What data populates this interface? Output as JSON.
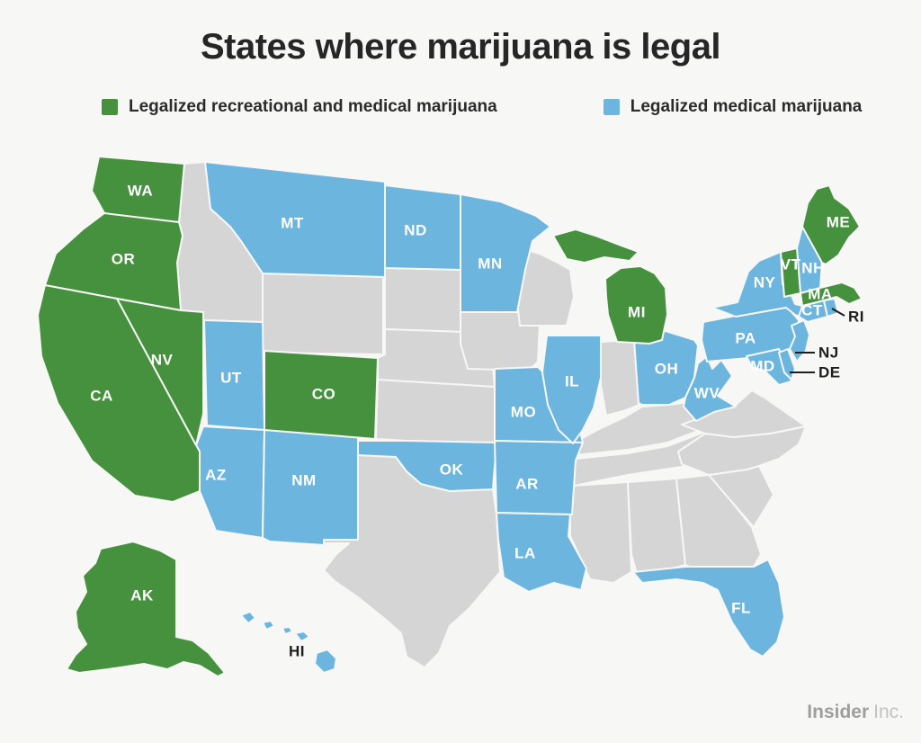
{
  "title": "States where marijuana is legal",
  "legend": [
    {
      "label": "Legalized recreational and medical marijuana",
      "status": "recreational_and_medical"
    },
    {
      "label": "Legalized medical marijuana",
      "status": "medical"
    }
  ],
  "footer": {
    "brand": "Insider",
    "suffix": "Inc."
  },
  "map": {
    "status_colors": {
      "recreational_and_medical": "#45913E",
      "medical": "#6CB5DE",
      "not_legal": "#D5D5D5"
    },
    "callout_states": [
      "RI",
      "NJ",
      "DE"
    ],
    "states": [
      {
        "id": "ID",
        "status": "not_legal",
        "label": ""
      },
      {
        "id": "WY",
        "status": "not_legal",
        "label": ""
      },
      {
        "id": "SD",
        "status": "not_legal",
        "label": ""
      },
      {
        "id": "NE",
        "status": "not_legal",
        "label": ""
      },
      {
        "id": "KS",
        "status": "not_legal",
        "label": ""
      },
      {
        "id": "TX",
        "status": "not_legal",
        "label": ""
      },
      {
        "id": "IA",
        "status": "not_legal",
        "label": ""
      },
      {
        "id": "WI",
        "status": "not_legal",
        "label": ""
      },
      {
        "id": "IN",
        "status": "not_legal",
        "label": ""
      },
      {
        "id": "KY",
        "status": "not_legal",
        "label": ""
      },
      {
        "id": "TN",
        "status": "not_legal",
        "label": ""
      },
      {
        "id": "MS",
        "status": "not_legal",
        "label": ""
      },
      {
        "id": "AL",
        "status": "not_legal",
        "label": ""
      },
      {
        "id": "GA",
        "status": "not_legal",
        "label": ""
      },
      {
        "id": "SC",
        "status": "not_legal",
        "label": ""
      },
      {
        "id": "NC",
        "status": "not_legal",
        "label": ""
      },
      {
        "id": "VA",
        "status": "not_legal",
        "label": ""
      },
      {
        "id": "MT",
        "status": "medical",
        "label": "MT"
      },
      {
        "id": "ND",
        "status": "medical",
        "label": "ND"
      },
      {
        "id": "MN",
        "status": "medical",
        "label": "MN"
      },
      {
        "id": "UT",
        "status": "medical",
        "label": "UT"
      },
      {
        "id": "AZ",
        "status": "medical",
        "label": "AZ"
      },
      {
        "id": "NM",
        "status": "medical",
        "label": "NM"
      },
      {
        "id": "OK",
        "status": "medical",
        "label": "OK"
      },
      {
        "id": "MO",
        "status": "medical",
        "label": "MO"
      },
      {
        "id": "AR",
        "status": "medical",
        "label": "AR"
      },
      {
        "id": "LA",
        "status": "medical",
        "label": "LA"
      },
      {
        "id": "IL",
        "status": "medical",
        "label": "IL"
      },
      {
        "id": "OH",
        "status": "medical",
        "label": "OH"
      },
      {
        "id": "WV",
        "status": "medical",
        "label": "WV"
      },
      {
        "id": "PA",
        "status": "medical",
        "label": "PA"
      },
      {
        "id": "NY",
        "status": "medical",
        "label": "NY"
      },
      {
        "id": "NH",
        "status": "medical",
        "label": "NH"
      },
      {
        "id": "CT",
        "status": "medical",
        "label": "CT"
      },
      {
        "id": "RI",
        "status": "medical",
        "label": "RI"
      },
      {
        "id": "NJ",
        "status": "medical",
        "label": "NJ"
      },
      {
        "id": "MD",
        "status": "medical",
        "label": "MD"
      },
      {
        "id": "DE",
        "status": "medical",
        "label": "DE"
      },
      {
        "id": "FL",
        "status": "medical",
        "label": "FL"
      },
      {
        "id": "HI",
        "status": "medical",
        "label": "HI"
      },
      {
        "id": "WA",
        "status": "recreational_and_medical",
        "label": "WA"
      },
      {
        "id": "OR",
        "status": "recreational_and_medical",
        "label": "OR"
      },
      {
        "id": "CA",
        "status": "recreational_and_medical",
        "label": "CA"
      },
      {
        "id": "NV",
        "status": "recreational_and_medical",
        "label": "NV"
      },
      {
        "id": "CO",
        "status": "recreational_and_medical",
        "label": "CO"
      },
      {
        "id": "MI",
        "status": "recreational_and_medical",
        "label": "MI"
      },
      {
        "id": "ME",
        "status": "recreational_and_medical",
        "label": "ME"
      },
      {
        "id": "VT",
        "status": "recreational_and_medical",
        "label": "VT"
      },
      {
        "id": "MA",
        "status": "recreational_and_medical",
        "label": "MA"
      },
      {
        "id": "AK",
        "status": "recreational_and_medical",
        "label": "AK"
      }
    ]
  }
}
